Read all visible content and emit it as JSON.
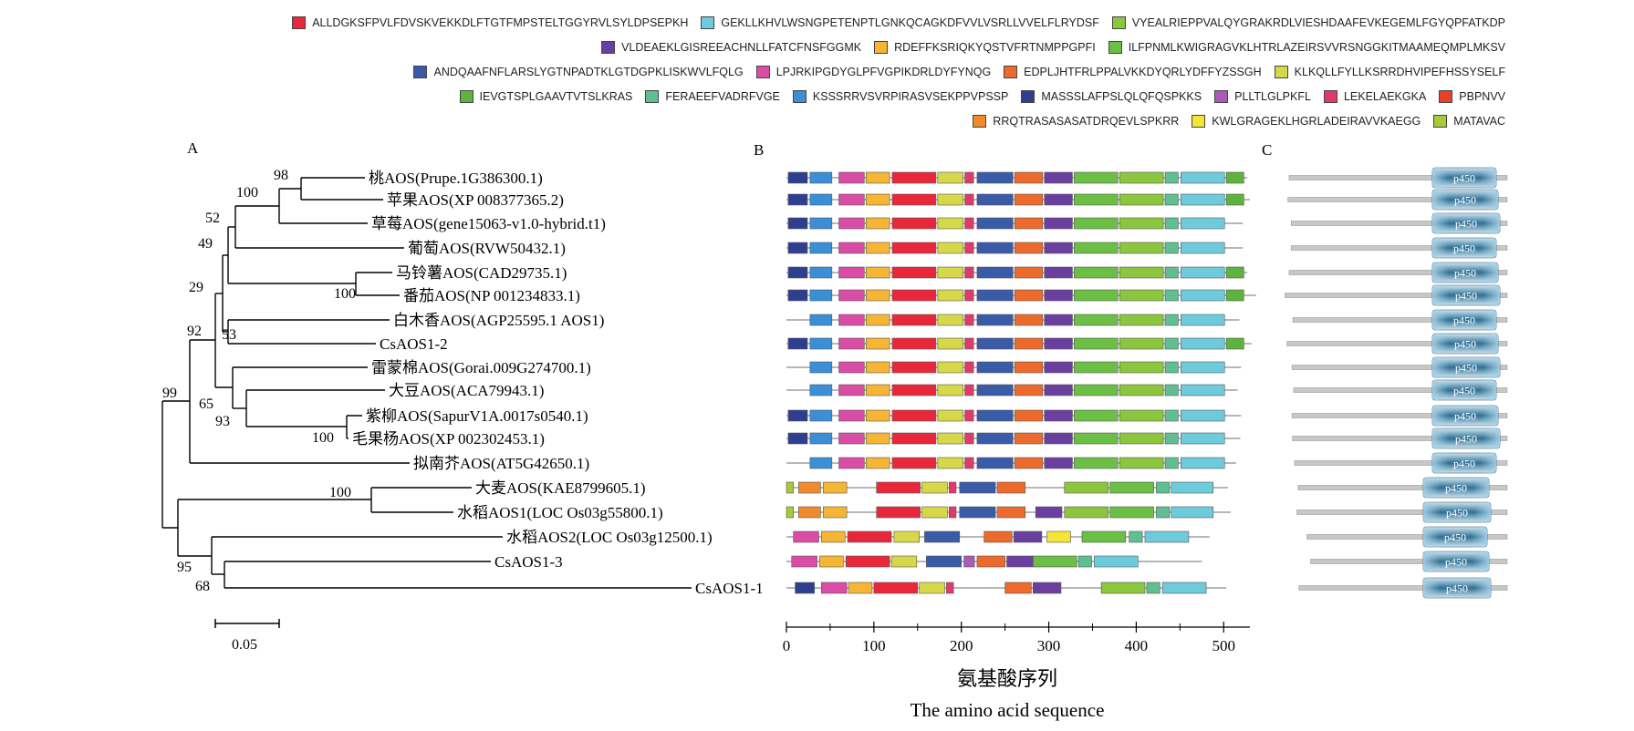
{
  "motifs": [
    {
      "seq": "ALLDGKSFPVLFDVSKVEKKDLFTGTFMPSTELTGGYRVLSYLDPSEPKH",
      "color": "#e8283a"
    },
    {
      "seq": "GEKLLKHVLWSNGPETENPTLGNKQCAGKDFVVLVSRLLVVELFLRYDSF",
      "color": "#6ecbdc"
    },
    {
      "seq": "VYEALRIEPPVALQYGRAKRDLVIESHDAAFEVKEGEMLFGYQPFATKDP",
      "color": "#8cc63e"
    },
    {
      "seq": "VLDEAEKLGISREEACHNLLFATCFNSFGGMK",
      "color": "#6a3fa0"
    },
    {
      "seq": "RDEFFKSRIQKYQSTVFRTNMPPGPFI",
      "color": "#f5b535"
    },
    {
      "seq": "ILFPNMLKWIGRAGVKLHTRLAZEIRSVVRSNGGKITMAAMEQMPLMKSV",
      "color": "#6cbf45"
    },
    {
      "seq": "ANDQAAFNFLARSLYGTNPADTKLGTDGPKLISKWVLFQLG",
      "color": "#3a5ba8"
    },
    {
      "seq": "LPJRKIPGDYGLPFVGPIKDRLDYFYNQG",
      "color": "#d94da6"
    },
    {
      "seq": "EDPLJHTFRLPPALVKKDYQRLYDFFYZSSGH",
      "color": "#ec6a2c"
    },
    {
      "seq": "KLKQLLFYLLKSRRDHVIPEFHSSYSELF",
      "color": "#d6d84a"
    },
    {
      "seq": "IEVGTSPLGAAVTVTSLKRAS",
      "color": "#5db33e"
    },
    {
      "seq": "FERAEEFVADRFVGE",
      "color": "#5fbf93"
    },
    {
      "seq": "KSSSRRVSVRPIRASVSEKPPVPSSP",
      "color": "#3a8fd6"
    },
    {
      "seq": "MASSSLAFPSLQLQFQSPKKS",
      "color": "#2f3f8f"
    },
    {
      "seq": "PLLTLGLPKFL",
      "color": "#a95bb5"
    },
    {
      "seq": "LEKELAEKGKA",
      "color": "#e03a6a"
    },
    {
      "seq": "PBPNVV",
      "color": "#e8402a"
    },
    {
      "seq": "RRQTRASASASATDRQEVLSPKRR",
      "color": "#f08a2c"
    },
    {
      "seq": "KWLGRAGEKLHGRLADEIRAVVKAEGG",
      "color": "#f3e533"
    },
    {
      "seq": "MATAVAC",
      "color": "#a8c93a"
    }
  ],
  "legend_rows": [
    [
      0,
      1,
      2
    ],
    [
      3,
      4,
      5
    ],
    [
      6,
      7,
      8,
      9
    ],
    [
      10,
      11,
      12,
      13,
      14,
      15,
      16
    ],
    [
      17,
      18,
      19
    ]
  ],
  "panel_labels": {
    "a": "A",
    "b": "B",
    "c": "C"
  },
  "taxa": [
    "桃AOS(Prupe.1G386300.1)",
    "苹果AOS(XP 008377365.2)",
    "草莓AOS(gene15063-v1.0-hybrid.t1)",
    "葡萄AOS(RVW50432.1)",
    "马铃薯AOS(CAD29735.1)",
    "番茄AOS(NP 001234833.1)",
    "白木香AOS(AGP25595.1 AOS1)",
    "CsAOS1-2",
    "雷蒙棉AOS(Gorai.009G274700.1)",
    "大豆AOS(ACA79943.1)",
    "紫柳AOS(SapurV1A.0017s0540.1)",
    "毛果杨AOS(XP 002302453.1)",
    "拟南芥AOS(AT5G42650.1)",
    "大麦AOS(KAE8799605.1)",
    "水稻AOS1(LOC Os03g55800.1)",
    "水稻AOS2(LOC Os03g12500.1)",
    "CsAOS1-3",
    "CsAOS1-1"
  ],
  "bootstrap": [
    "98",
    "100",
    "52",
    "49",
    "100",
    "29",
    "92",
    "53",
    "99",
    "65",
    "93",
    "100",
    "100",
    "95",
    "68"
  ],
  "scale_bar": {
    "value": 0.05,
    "label": "0.05"
  },
  "axis": {
    "ticks": [
      0,
      100,
      200,
      300,
      400,
      500
    ],
    "tick_labels": [
      "0",
      "100",
      "200",
      "300",
      "400",
      "500"
    ],
    "xlabel_zh": "氨基酸序列",
    "xlabel_en": "The amino acid sequence",
    "max": 530
  },
  "protein_lengths": [
    527,
    530,
    522,
    522,
    527,
    537,
    518,
    532,
    520,
    516,
    520,
    519,
    514,
    505,
    508,
    484,
    475,
    503
  ],
  "domain_label": "p450",
  "domain_colors": {
    "dark": "#2e6f93",
    "light": "#a9d2e7"
  }
}
